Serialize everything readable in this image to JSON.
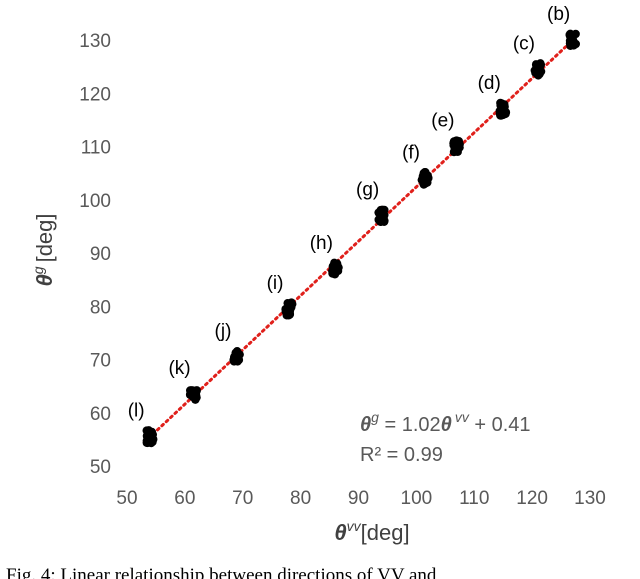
{
  "chart_data": {
    "type": "scatter",
    "xlabel_symbol": "θ",
    "xlabel_sup": "vv",
    "xlabel_unit": "[deg]",
    "ylabel_symbol": "θ",
    "ylabel_sup": "g",
    "ylabel_unit": "[deg]",
    "xlim": [
      50,
      130
    ],
    "ylim": [
      50,
      130
    ],
    "xticks": [
      50,
      60,
      70,
      80,
      90,
      100,
      110,
      120,
      130
    ],
    "yticks": [
      50,
      60,
      70,
      80,
      90,
      100,
      110,
      120,
      130
    ],
    "grid": false,
    "trendline": {
      "slope": 1.02,
      "intercept": 0.41,
      "style": "dotted",
      "color": "#e0201b"
    },
    "equation": {
      "lhs_symbol": "θ",
      "lhs_sup": "g",
      "mid": " = 1.02",
      "rhs_symbol": "θ",
      "rhs_sup": "vv",
      "tail": " + 0.41"
    },
    "r2": "R² = 0.99",
    "point_color": "#000000",
    "clusters": [
      {
        "label": "(b)",
        "x": 127.0,
        "y": 130.0
      },
      {
        "label": "(c)",
        "x": 121.0,
        "y": 124.5
      },
      {
        "label": "(d)",
        "x": 115.0,
        "y": 117.0
      },
      {
        "label": "(e)",
        "x": 107.0,
        "y": 110.0
      },
      {
        "label": "(f)",
        "x": 101.5,
        "y": 104.0
      },
      {
        "label": "(g)",
        "x": 94.0,
        "y": 97.0
      },
      {
        "label": "(h)",
        "x": 86.0,
        "y": 87.0
      },
      {
        "label": "(i)",
        "x": 78.0,
        "y": 79.5
      },
      {
        "label": "(j)",
        "x": 69.0,
        "y": 70.5
      },
      {
        "label": "(k)",
        "x": 61.5,
        "y": 63.5
      },
      {
        "label": "(l)",
        "x": 54.0,
        "y": 55.5
      }
    ]
  },
  "caption": "Fig. 4: Linear relationship between directions of VV and"
}
